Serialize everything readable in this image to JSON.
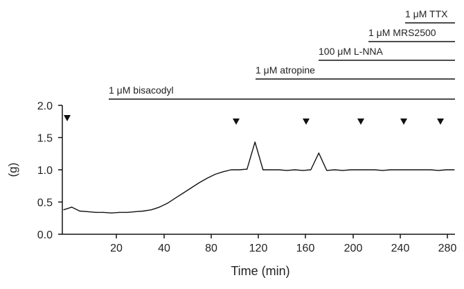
{
  "chart_data": {
    "type": "line",
    "xlabel": "Time (min)",
    "ylabel": "(g)",
    "x_tick_labels": [
      "20",
      "40",
      "80",
      "120",
      "160",
      "200",
      "240",
      "280"
    ],
    "y_ticks": [
      "0.0",
      "0.5",
      "1.0",
      "1.5",
      "2.0"
    ],
    "ylim": [
      0,
      2.0
    ],
    "grid": false,
    "series": [
      {
        "values": [
          0.38,
          0.42,
          0.36,
          0.35,
          0.34,
          0.34,
          0.33,
          0.34,
          0.34,
          0.35,
          0.36,
          0.38,
          0.42,
          0.48,
          0.56,
          0.64,
          0.72,
          0.8,
          0.87,
          0.93,
          0.97,
          1.0,
          1.0,
          1.01,
          1.43,
          1.0,
          1.0,
          1.0,
          0.99,
          1.0,
          0.99,
          1.0,
          1.26,
          0.99,
          1.0,
          0.99,
          1.0,
          1.0,
          1.0,
          1.0,
          0.99,
          1.0,
          1.0,
          1.0,
          1.0,
          1.0,
          1.0,
          0.99,
          1.0,
          1.0
        ]
      }
    ],
    "annotations": [
      {
        "label": "1 μM bisacodyl"
      },
      {
        "label": "1 μM atropine"
      },
      {
        "label": "100 μM L-NNA"
      },
      {
        "label": "1 μM MRS2500"
      },
      {
        "label": "1 μM TTX"
      }
    ],
    "stimulus_markers": 6
  }
}
